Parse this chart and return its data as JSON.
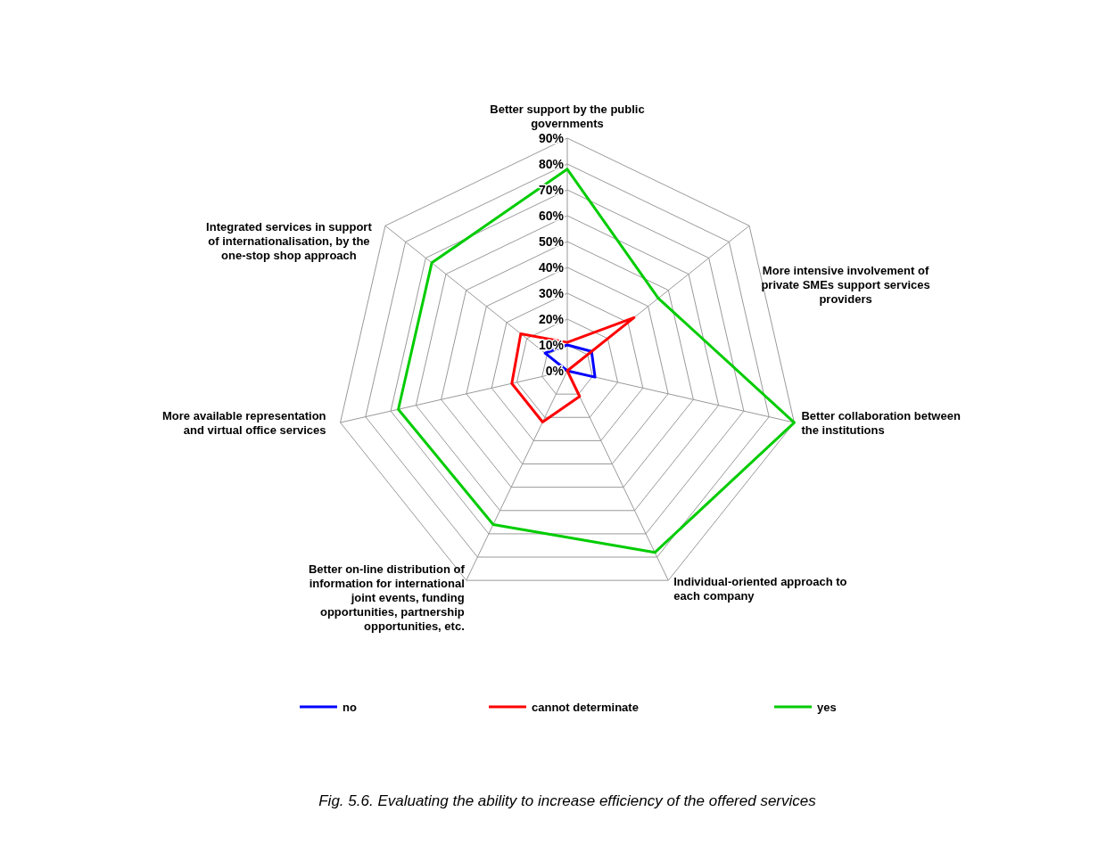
{
  "chart_data": {
    "type": "radar",
    "categories": [
      "Better support by the public governments",
      "More intensive involvement of private SMEs support services providers",
      "Better collaboration between the institutions",
      "Individual-oriented approach to each company",
      "Better on-line distribution of information for international joint events, funding opportunities, partnership opportunities, etc.",
      "More available representation and virtual office services",
      "Integrated services in support of internationalisation, by the one-stop shop approach"
    ],
    "series": [
      {
        "name": "no",
        "color": "#0000ff",
        "values": [
          10,
          12,
          11,
          0,
          0,
          0,
          11
        ]
      },
      {
        "name": "cannot determinate",
        "color": "#ff0000",
        "values": [
          11,
          33,
          0,
          11,
          22,
          22,
          23
        ]
      },
      {
        "name": "yes",
        "color": "#00cc00",
        "values": [
          78,
          45,
          90,
          78,
          66,
          67,
          67
        ]
      }
    ],
    "ylim": [
      0,
      90
    ],
    "yticks": [
      {
        "value": 0,
        "label": "0%"
      },
      {
        "value": 10,
        "label": "10%"
      },
      {
        "value": 20,
        "label": "20%"
      },
      {
        "value": 30,
        "label": "30%"
      },
      {
        "value": 40,
        "label": "40%"
      },
      {
        "value": 50,
        "label": "50%"
      },
      {
        "value": 60,
        "label": "60%"
      },
      {
        "value": 70,
        "label": "70%"
      },
      {
        "value": 80,
        "label": "80%"
      },
      {
        "value": 90,
        "label": "90%"
      }
    ],
    "grid": true,
    "legend": "bottom",
    "annotations": [
      "Fig. 5.6. Evaluating the ability to increase efficiency of the offered  services"
    ]
  }
}
